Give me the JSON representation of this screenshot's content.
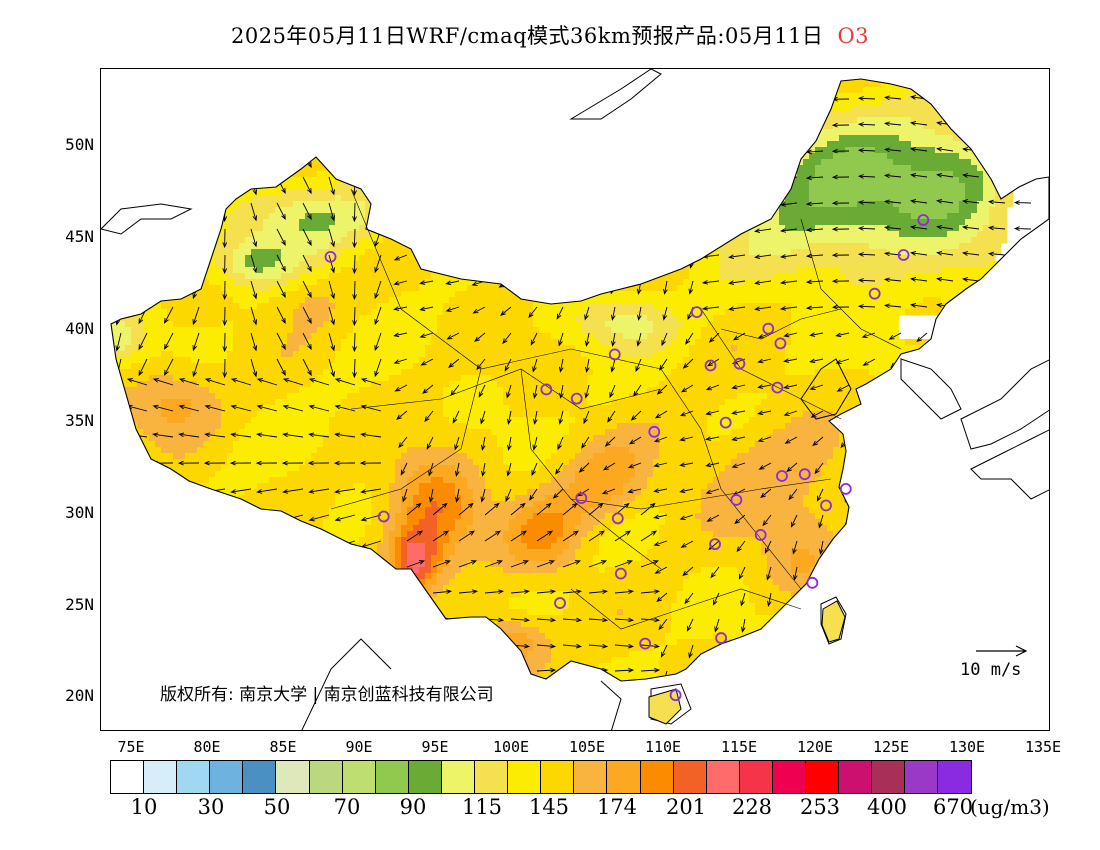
{
  "title": {
    "main": "2025年05月11日WRF/cmaq模式36km预报产品:05月11日",
    "species": "O3"
  },
  "axes": {
    "lat_labels": [
      "50N",
      "45N",
      "40N",
      "35N",
      "30N",
      "25N",
      "20N"
    ],
    "lon_labels": [
      "75E",
      "80E",
      "85E",
      "90E",
      "95E",
      "100E",
      "105E",
      "110E",
      "115E",
      "120E",
      "125E",
      "130E",
      "135E"
    ]
  },
  "copyright": "版权所有: 南京大学 | 南京创蓝科技有限公司",
  "wind_reference": "10 m/s",
  "legend": {
    "labels": [
      "10",
      "30",
      "50",
      "70",
      "90",
      "115",
      "145",
      "174",
      "201",
      "228",
      "253",
      "400",
      "670"
    ],
    "unit": "(ug/m3)",
    "colors": [
      "#ffffff",
      "#d6eef9",
      "#a0d8f2",
      "#6eb2e0",
      "#4a90c2",
      "#dfe8b8",
      "#bcd87e",
      "#bede6f",
      "#90c94e",
      "#6aab36",
      "#eef46a",
      "#f5e050",
      "#fbec00",
      "#fcd800",
      "#f9b440",
      "#fca820",
      "#fb8c00",
      "#f26227",
      "#ff6b6b",
      "#f5344a",
      "#f00050",
      "#ff0000",
      "#cc1070",
      "#a83058",
      "#9a38c8",
      "#8a2be2"
    ]
  },
  "map": {
    "extent": {
      "lon_min": 72.5,
      "lon_max": 135,
      "lat_min": 18,
      "lat_max": 54
    },
    "colors": {
      "ocean": "#ffffff",
      "land_outside": "#ffffff",
      "border": "#000000",
      "marker": "#8a2be2",
      "arrow": "#000000"
    },
    "city_markers_approx": 36
  }
}
